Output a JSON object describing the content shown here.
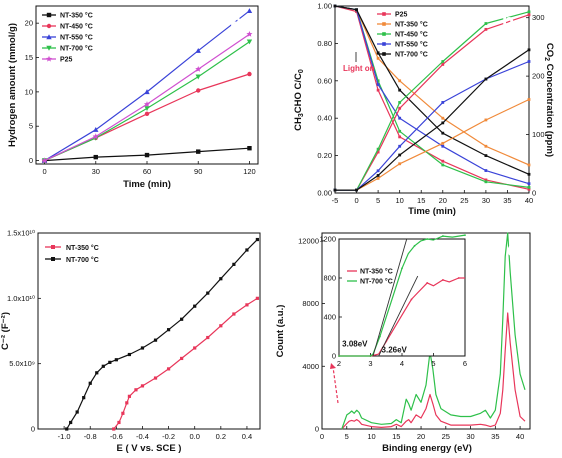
{
  "chart_data": [
    {
      "panel": "a",
      "type": "line",
      "xlabel": "Time (min)",
      "ylabel": "Hydrogen amount (mmol/g)",
      "xlim": [
        -5,
        125
      ],
      "ylim": [
        -0.5,
        22.5
      ],
      "xticks": [
        0,
        30,
        60,
        90,
        120
      ],
      "yticks": [
        0,
        5,
        10,
        15,
        20
      ],
      "legend_position": "top-left",
      "x": [
        0,
        30,
        60,
        90,
        120
      ],
      "series": [
        {
          "name": "NT-350 °C",
          "color": "#111111",
          "marker": "square",
          "values": [
            0,
            0.5,
            0.8,
            1.3,
            1.8
          ]
        },
        {
          "name": "NT-450 °C",
          "color": "#e8365a",
          "marker": "circle",
          "values": [
            0,
            3.3,
            6.8,
            10.2,
            12.6
          ]
        },
        {
          "name": "NT-550 °C",
          "color": "#3a43d8",
          "marker": "triangle-up",
          "values": [
            0,
            4.5,
            10.0,
            16.0,
            21.8
          ]
        },
        {
          "name": "NT-700 °C",
          "color": "#2ec04a",
          "marker": "triangle-down",
          "values": [
            0,
            3.3,
            7.6,
            12.2,
            17.3
          ]
        },
        {
          "name": "P25",
          "color": "#d050d0",
          "marker": "star",
          "values": [
            0,
            3.5,
            8.2,
            13.3,
            18.4
          ]
        }
      ]
    },
    {
      "panel": "b",
      "type": "line",
      "xlabel": "Time (min)",
      "ylabel_left": "CH3CHO C/C0",
      "ylabel_right": "CO2 Concentration (ppm)",
      "xlim": [
        -5,
        40
      ],
      "ylim_left": [
        0,
        1.0
      ],
      "ylim_right": [
        0,
        320
      ],
      "xticks": [
        -5,
        0,
        5,
        10,
        15,
        20,
        25,
        30,
        35,
        40
      ],
      "yticks_left": [
        0.0,
        0.2,
        0.4,
        0.6,
        0.8,
        1.0
      ],
      "yticks_right": [
        0,
        100,
        200,
        300
      ],
      "annotation": "Light on",
      "legend_position": "top-left",
      "x": [
        -5,
        0,
        5,
        10,
        20,
        30,
        40
      ],
      "series": [
        {
          "name": "P25",
          "color": "#e8365a",
          "axis": "left",
          "values": [
            1.0,
            0.97,
            0.55,
            0.3,
            0.17,
            0.07,
            0.02
          ]
        },
        {
          "name": "NT-350 °C",
          "color": "#f08a3a",
          "axis": "left",
          "values": [
            1.0,
            0.98,
            0.72,
            0.6,
            0.4,
            0.25,
            0.15
          ]
        },
        {
          "name": "NT-450 °C",
          "color": "#2ec04a",
          "axis": "left",
          "values": [
            1.0,
            0.98,
            0.6,
            0.33,
            0.15,
            0.06,
            0.03
          ]
        },
        {
          "name": "NT-550 °C",
          "color": "#3a43d8",
          "axis": "left",
          "values": [
            1.0,
            0.98,
            0.58,
            0.4,
            0.25,
            0.12,
            0.05
          ]
        },
        {
          "name": "NT-700 °C",
          "color": "#111111",
          "axis": "left",
          "values": [
            1.0,
            0.98,
            0.75,
            0.55,
            0.32,
            0.2,
            0.1
          ]
        },
        {
          "name": "P25",
          "color": "#e8365a",
          "axis": "right",
          "values": [
            5,
            5,
            70,
            145,
            220,
            280,
            305
          ]
        },
        {
          "name": "NT-350 °C",
          "color": "#f08a3a",
          "axis": "right",
          "values": [
            5,
            5,
            25,
            50,
            85,
            125,
            160
          ]
        },
        {
          "name": "NT-450 °C",
          "color": "#2ec04a",
          "axis": "right",
          "values": [
            5,
            5,
            75,
            155,
            225,
            290,
            310
          ]
        },
        {
          "name": "NT-550 °C",
          "color": "#3a43d8",
          "axis": "right",
          "values": [
            5,
            5,
            38,
            80,
            155,
            195,
            225
          ]
        },
        {
          "name": "NT-700 °C",
          "color": "#111111",
          "axis": "right",
          "values": [
            5,
            5,
            30,
            65,
            120,
            195,
            245
          ]
        }
      ]
    },
    {
      "panel": "c",
      "type": "line",
      "xlabel": "E ( V vs. SCE )",
      "ylabel": "C⁻² (F⁻²)",
      "xlim": [
        -1.2,
        0.5
      ],
      "ylim": [
        0,
        15000000000.0
      ],
      "xticks": [
        -1.0,
        -0.8,
        -0.6,
        -0.4,
        -0.2,
        0.0,
        0.2,
        0.4
      ],
      "xtick_labels": [
        "-1.0",
        "-0.8",
        "-0.6",
        "-0.4",
        "-0.2",
        "0.0",
        "0.2",
        "0.4"
      ],
      "yticks": [
        0,
        5000000000.0,
        10000000000.0,
        15000000000.0
      ],
      "ytick_labels": [
        "0",
        "5.0x10⁹",
        "1.0x10¹⁰",
        "1.5x10¹⁰"
      ],
      "legend_position": "top-left",
      "series": [
        {
          "name": "NT-350 °C",
          "color": "#e8365a",
          "x": [
            -0.62,
            -0.58,
            -0.55,
            -0.52,
            -0.5,
            -0.45,
            -0.4,
            -0.3,
            -0.2,
            -0.1,
            0.0,
            0.1,
            0.2,
            0.3,
            0.4,
            0.48
          ],
          "values": [
            0,
            500000000.0,
            1200000000.0,
            2000000000.0,
            2500000000.0,
            3000000000.0,
            3300000000.0,
            3900000000.0,
            4600000000.0,
            5400000000.0,
            6200000000.0,
            7000000000.0,
            7900000000.0,
            8800000000.0,
            9500000000.0,
            10000000000.0
          ]
        },
        {
          "name": "NT-700 °C",
          "color": "#111111",
          "x": [
            -0.98,
            -0.95,
            -0.9,
            -0.85,
            -0.8,
            -0.75,
            -0.7,
            -0.65,
            -0.6,
            -0.5,
            -0.4,
            -0.3,
            -0.2,
            -0.1,
            0.0,
            0.1,
            0.2,
            0.3,
            0.4,
            0.48
          ],
          "values": [
            0,
            500000000.0,
            1300000000.0,
            2400000000.0,
            3500000000.0,
            4300000000.0,
            4800000000.0,
            5100000000.0,
            5300000000.0,
            5700000000.0,
            6200000000.0,
            6800000000.0,
            7600000000.0,
            8400000000.0,
            9400000000.0,
            10400000000.0,
            11500000000.0,
            12600000000.0,
            13700000000.0,
            14500000000.0
          ]
        }
      ]
    },
    {
      "panel": "d",
      "type": "line",
      "xlabel": "Binding energy (eV)",
      "ylabel": "Count (a.u.)",
      "xlim": [
        0,
        42
      ],
      "ylim": [
        0,
        12500
      ],
      "xticks": [
        0,
        5,
        10,
        15,
        20,
        25,
        30,
        35,
        40
      ],
      "yticks": [
        0,
        4000,
        8000,
        12000
      ],
      "series": [
        {
          "name": "NT-350 °C",
          "color": "#e8365a",
          "x": [
            4,
            5,
            5.5,
            6,
            6.5,
            7,
            7.5,
            8,
            10,
            12,
            14,
            15,
            16,
            17,
            17.5,
            18,
            19,
            20,
            21,
            21.8,
            22.4,
            23,
            24,
            26,
            28,
            30,
            32,
            33,
            34,
            35,
            36,
            36.5,
            37,
            37.5,
            38,
            39,
            40,
            41
          ],
          "values": [
            0,
            350,
            500,
            550,
            500,
            600,
            500,
            300,
            150,
            100,
            150,
            300,
            150,
            500,
            600,
            400,
            900,
            700,
            1300,
            2200,
            1600,
            900,
            500,
            250,
            250,
            250,
            300,
            250,
            150,
            250,
            1000,
            2500,
            5000,
            7400,
            5500,
            2500,
            800,
            500
          ]
        },
        {
          "name": "NT-700 °C",
          "color": "#2ec04a",
          "x": [
            4,
            5,
            5.5,
            6,
            6.5,
            7,
            7.5,
            8,
            10,
            12,
            14,
            15,
            16,
            17,
            17.5,
            18,
            19,
            20,
            21,
            21.8,
            22.4,
            23,
            24,
            26,
            28,
            30,
            32,
            33,
            34,
            35,
            36,
            36.5,
            37,
            37.5,
            38,
            39,
            40,
            41
          ],
          "values": [
            0,
            900,
            1000,
            1150,
            1000,
            1200,
            1050,
            700,
            400,
            300,
            350,
            600,
            400,
            1900,
            1600,
            1200,
            2200,
            1700,
            2800,
            4900,
            3800,
            2200,
            1300,
            900,
            800,
            800,
            1000,
            1200,
            700,
            1200,
            3500,
            7000,
            11000,
            12500,
            10000,
            6000,
            3500,
            2500
          ]
        }
      ],
      "inset": {
        "xlim": [
          2,
          6
        ],
        "ylim": [
          0,
          1200
        ],
        "xticks": [
          2,
          3,
          4,
          5,
          6
        ],
        "yticks": [
          0,
          400,
          800,
          1200
        ],
        "annotations": [
          "3.08eV",
          "3.26eV"
        ],
        "legend_position": "left",
        "series": [
          {
            "name": "NT-350 °C",
            "color": "#e8365a",
            "x": [
              2.0,
              2.5,
              3.0,
              3.26,
              3.5,
              4.0,
              4.3,
              4.5,
              4.8,
              5.0,
              5.3,
              5.5,
              5.8,
              6.0
            ],
            "values": [
              0,
              0,
              0,
              20,
              150,
              420,
              580,
              650,
              750,
              720,
              780,
              760,
              800,
              800
            ]
          },
          {
            "name": "NT-700 °C",
            "color": "#2ec04a",
            "x": [
              2.0,
              2.5,
              3.0,
              3.08,
              3.3,
              3.6,
              4.0,
              4.2,
              4.4,
              4.6,
              4.8,
              5.0,
              5.3,
              5.6,
              6.0
            ],
            "values": [
              0,
              0,
              0,
              20,
              200,
              500,
              900,
              1050,
              1130,
              1180,
              1200,
              1190,
              1230,
              1220,
              1240
            ]
          }
        ]
      }
    }
  ]
}
